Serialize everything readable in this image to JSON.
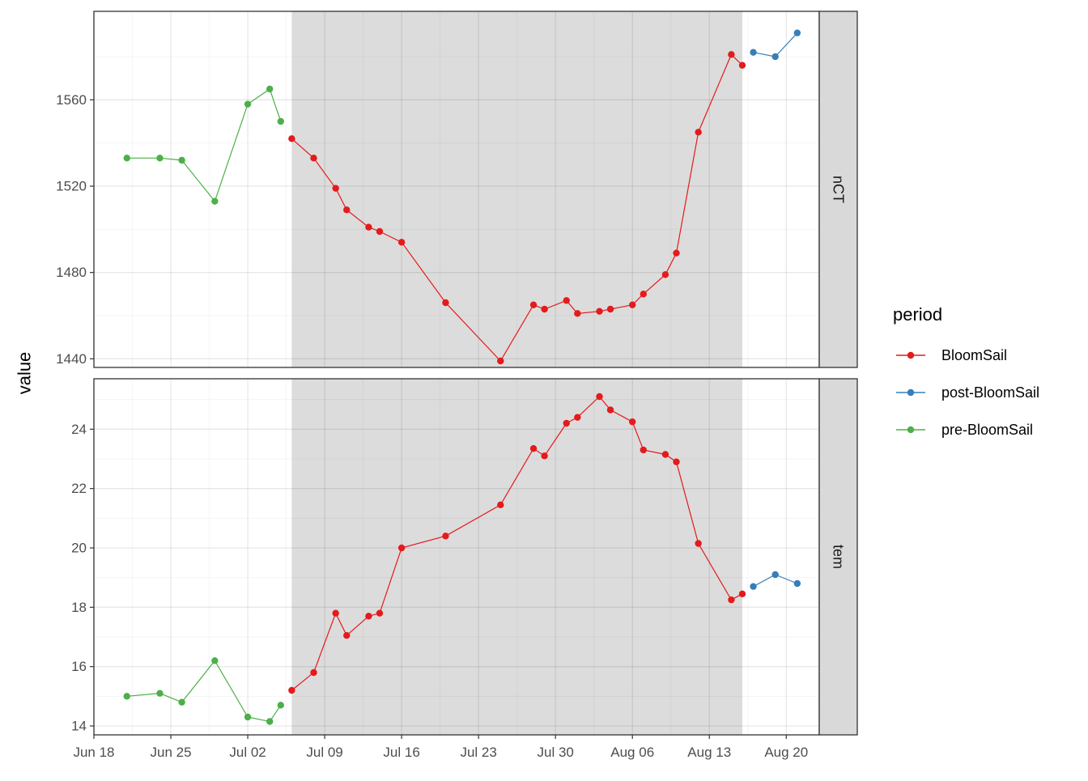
{
  "chart_data": {
    "type": "line",
    "ylabel": "value",
    "x_tick_labels": [
      "Jun 18",
      "Jun 25",
      "Jul 02",
      "Jul 09",
      "Jul 16",
      "Jul 23",
      "Jul 30",
      "Aug 06",
      "Aug 13",
      "Aug 20"
    ],
    "x_ticks": [
      "2023-06-18",
      "2023-06-25",
      "2023-07-02",
      "2023-07-09",
      "2023-07-16",
      "2023-07-23",
      "2023-07-30",
      "2023-08-06",
      "2023-08-13",
      "2023-08-20"
    ],
    "xlim": [
      "2023-06-18",
      "2023-08-23"
    ],
    "shaded_region": [
      "2023-07-06",
      "2023-08-16"
    ],
    "grid": true,
    "legend": {
      "title": "period",
      "placement": "right",
      "entries": [
        {
          "name": "BloomSail",
          "color": "#E41A1C"
        },
        {
          "name": "post-BloomSail",
          "color": "#377EB8"
        },
        {
          "name": "pre-BloomSail",
          "color": "#4DAF4A"
        }
      ]
    },
    "panels": [
      {
        "strip": "nCT",
        "ylim": [
          1436,
          1601
        ],
        "y_ticks": [
          1440,
          1480,
          1520,
          1560
        ],
        "y_tick_labels": [
          "1440",
          "1480",
          "1520",
          "1560"
        ],
        "series": [
          {
            "name": "pre-BloomSail",
            "color": "#4DAF4A",
            "points": [
              {
                "x": "2023-06-21",
                "y": 1533
              },
              {
                "x": "2023-06-24",
                "y": 1533
              },
              {
                "x": "2023-06-26",
                "y": 1532
              },
              {
                "x": "2023-06-29",
                "y": 1513
              },
              {
                "x": "2023-07-02",
                "y": 1558
              },
              {
                "x": "2023-07-04",
                "y": 1565
              },
              {
                "x": "2023-07-05",
                "y": 1550
              }
            ]
          },
          {
            "name": "BloomSail",
            "color": "#E41A1C",
            "points": [
              {
                "x": "2023-07-06",
                "y": 1542
              },
              {
                "x": "2023-07-08",
                "y": 1533
              },
              {
                "x": "2023-07-10",
                "y": 1519
              },
              {
                "x": "2023-07-11",
                "y": 1509
              },
              {
                "x": "2023-07-13",
                "y": 1501
              },
              {
                "x": "2023-07-14",
                "y": 1499
              },
              {
                "x": "2023-07-16",
                "y": 1494
              },
              {
                "x": "2023-07-20",
                "y": 1466
              },
              {
                "x": "2023-07-25",
                "y": 1439
              },
              {
                "x": "2023-07-28",
                "y": 1465
              },
              {
                "x": "2023-07-29",
                "y": 1463
              },
              {
                "x": "2023-07-31",
                "y": 1467
              },
              {
                "x": "2023-08-01",
                "y": 1461
              },
              {
                "x": "2023-08-03",
                "y": 1462
              },
              {
                "x": "2023-08-04",
                "y": 1463
              },
              {
                "x": "2023-08-06",
                "y": 1465
              },
              {
                "x": "2023-08-07",
                "y": 1470
              },
              {
                "x": "2023-08-09",
                "y": 1479
              },
              {
                "x": "2023-08-10",
                "y": 1489
              },
              {
                "x": "2023-08-12",
                "y": 1545
              },
              {
                "x": "2023-08-15",
                "y": 1581
              },
              {
                "x": "2023-08-16",
                "y": 1576
              }
            ]
          },
          {
            "name": "post-BloomSail",
            "color": "#377EB8",
            "points": [
              {
                "x": "2023-08-17",
                "y": 1582
              },
              {
                "x": "2023-08-19",
                "y": 1580
              },
              {
                "x": "2023-08-21",
                "y": 1591
              }
            ]
          }
        ]
      },
      {
        "strip": "tem",
        "ylim": [
          13.7,
          25.7
        ],
        "y_ticks": [
          14,
          16,
          18,
          20,
          22,
          24
        ],
        "y_tick_labels": [
          "14",
          "16",
          "18",
          "20",
          "22",
          "24"
        ],
        "series": [
          {
            "name": "pre-BloomSail",
            "color": "#4DAF4A",
            "points": [
              {
                "x": "2023-06-21",
                "y": 15.0
              },
              {
                "x": "2023-06-24",
                "y": 15.1
              },
              {
                "x": "2023-06-26",
                "y": 14.8
              },
              {
                "x": "2023-06-29",
                "y": 16.2
              },
              {
                "x": "2023-07-02",
                "y": 14.3
              },
              {
                "x": "2023-07-04",
                "y": 14.15
              },
              {
                "x": "2023-07-05",
                "y": 14.7
              }
            ]
          },
          {
            "name": "BloomSail",
            "color": "#E41A1C",
            "points": [
              {
                "x": "2023-07-06",
                "y": 15.2
              },
              {
                "x": "2023-07-08",
                "y": 15.8
              },
              {
                "x": "2023-07-10",
                "y": 17.8
              },
              {
                "x": "2023-07-11",
                "y": 17.05
              },
              {
                "x": "2023-07-13",
                "y": 17.7
              },
              {
                "x": "2023-07-14",
                "y": 17.8
              },
              {
                "x": "2023-07-16",
                "y": 20.0
              },
              {
                "x": "2023-07-20",
                "y": 20.4
              },
              {
                "x": "2023-07-25",
                "y": 21.45
              },
              {
                "x": "2023-07-28",
                "y": 23.35
              },
              {
                "x": "2023-07-29",
                "y": 23.1
              },
              {
                "x": "2023-07-31",
                "y": 24.2
              },
              {
                "x": "2023-08-01",
                "y": 24.4
              },
              {
                "x": "2023-08-03",
                "y": 25.1
              },
              {
                "x": "2023-08-04",
                "y": 24.65
              },
              {
                "x": "2023-08-06",
                "y": 24.25
              },
              {
                "x": "2023-08-07",
                "y": 23.3
              },
              {
                "x": "2023-08-09",
                "y": 23.15
              },
              {
                "x": "2023-08-10",
                "y": 22.9
              },
              {
                "x": "2023-08-12",
                "y": 20.15
              },
              {
                "x": "2023-08-15",
                "y": 18.25
              },
              {
                "x": "2023-08-16",
                "y": 18.45
              }
            ]
          },
          {
            "name": "post-BloomSail",
            "color": "#377EB8",
            "points": [
              {
                "x": "2023-08-17",
                "y": 18.7
              },
              {
                "x": "2023-08-19",
                "y": 19.1
              },
              {
                "x": "2023-08-21",
                "y": 18.8
              }
            ]
          }
        ]
      }
    ]
  }
}
